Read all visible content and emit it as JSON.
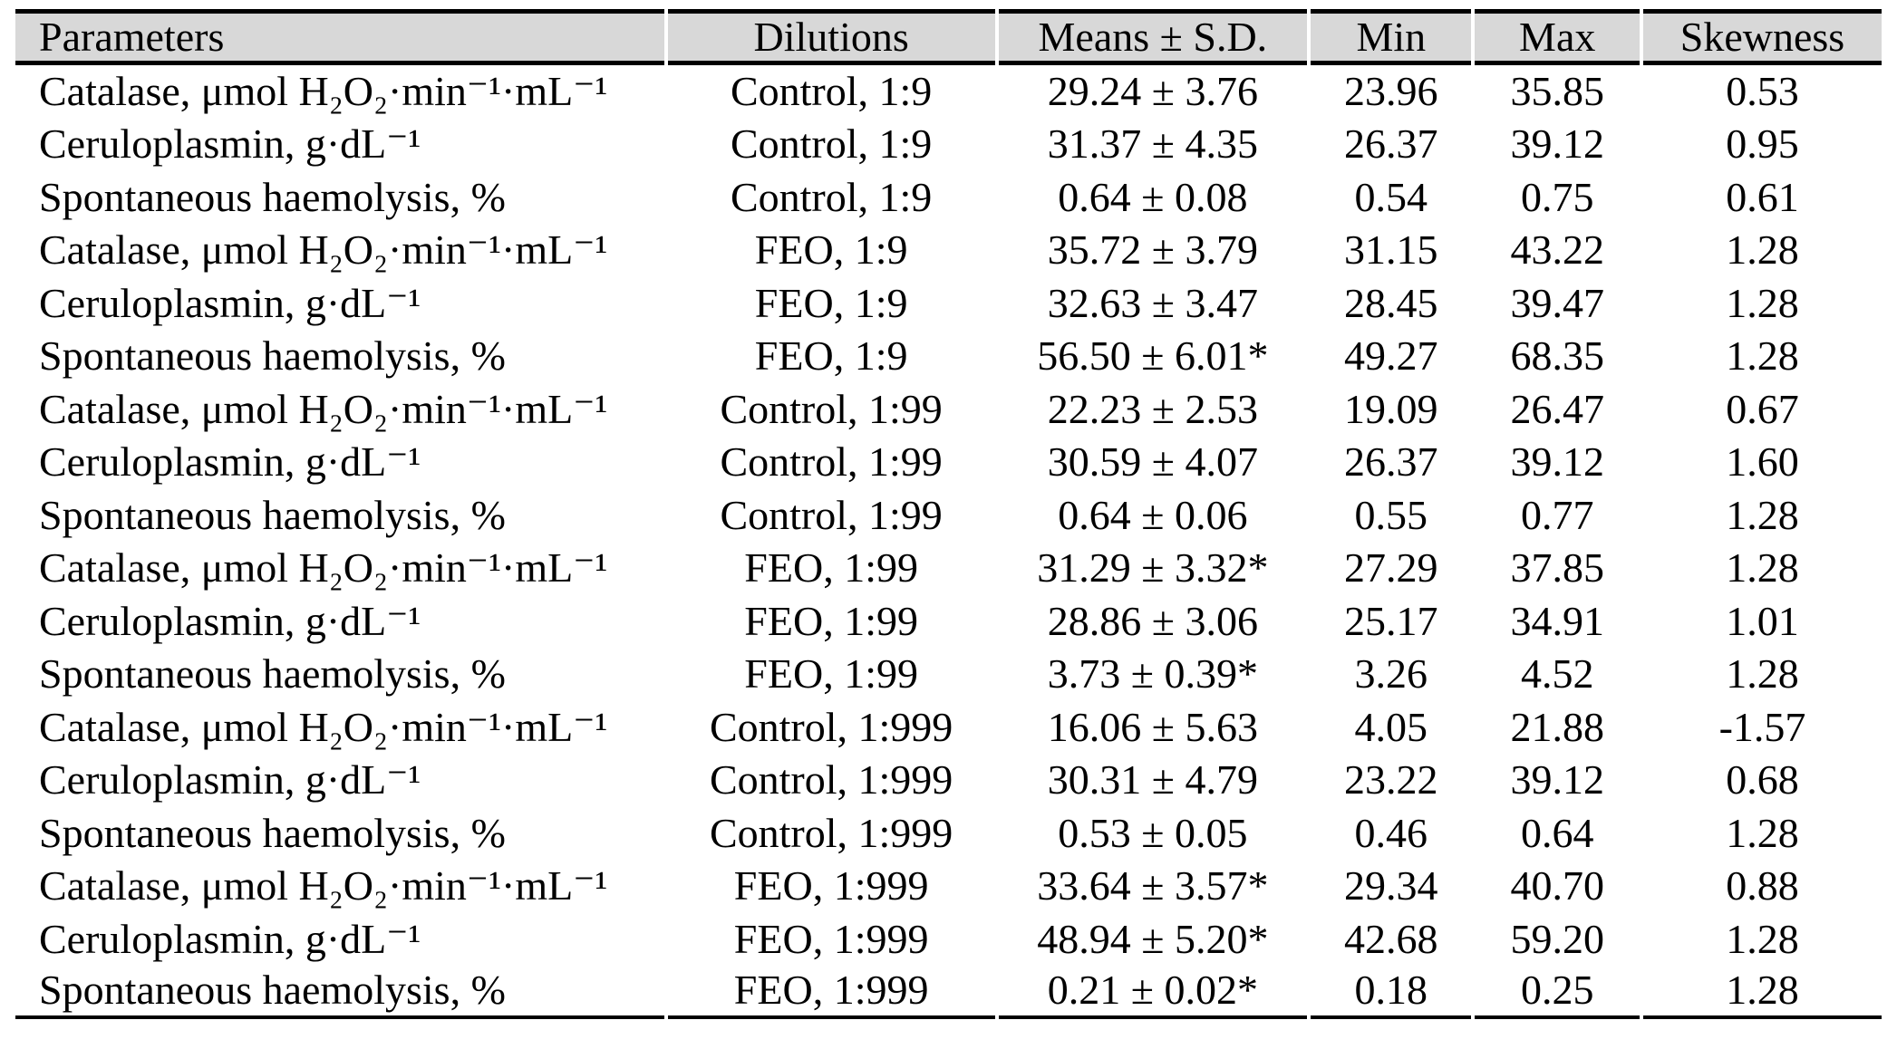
{
  "colors": {
    "header_bg": "#d8d8d8",
    "border": "#000000",
    "text": "#000000",
    "page_bg": "#ffffff"
  },
  "table": {
    "columns": [
      {
        "key": "parameter",
        "label": "Parameters",
        "align": "left"
      },
      {
        "key": "dilution",
        "label": "Dilutions",
        "align": "center"
      },
      {
        "key": "mean_sd",
        "label": "Means ± S.D.",
        "align": "center"
      },
      {
        "key": "min",
        "label": "Min",
        "align": "center"
      },
      {
        "key": "max",
        "label": "Max",
        "align": "center"
      },
      {
        "key": "skewness",
        "label": "Skewness",
        "align": "center"
      }
    ],
    "rows": [
      {
        "parameter": "Catalase, μmol H₂O₂·min⁻¹·mL⁻¹",
        "dilution": "Control, 1:9",
        "mean_sd": "29.24 ± 3.76",
        "min": "23.96",
        "max": "35.85",
        "skewness": "0.53"
      },
      {
        "parameter": "Ceruloplasmin, g·dL⁻¹",
        "dilution": "Control, 1:9",
        "mean_sd": "31.37 ± 4.35",
        "min": "26.37",
        "max": "39.12",
        "skewness": "0.95"
      },
      {
        "parameter": "Spontaneous haemolysis, %",
        "dilution": "Control, 1:9",
        "mean_sd": "0.64 ± 0.08",
        "min": "0.54",
        "max": "0.75",
        "skewness": "0.61"
      },
      {
        "parameter": "Catalase, μmol H₂O₂·min⁻¹·mL⁻¹",
        "dilution": "FEO, 1:9",
        "mean_sd": "35.72 ± 3.79",
        "min": "31.15",
        "max": "43.22",
        "skewness": "1.28"
      },
      {
        "parameter": "Ceruloplasmin, g·dL⁻¹",
        "dilution": "FEO, 1:9",
        "mean_sd": "32.63 ± 3.47",
        "min": "28.45",
        "max": "39.47",
        "skewness": "1.28"
      },
      {
        "parameter": "Spontaneous haemolysis, %",
        "dilution": "FEO, 1:9",
        "mean_sd": "56.50 ± 6.01*",
        "min": "49.27",
        "max": "68.35",
        "skewness": "1.28"
      },
      {
        "parameter": "Catalase, μmol H₂O₂·min⁻¹·mL⁻¹",
        "dilution": "Control, 1:99",
        "mean_sd": "22.23 ± 2.53",
        "min": "19.09",
        "max": "26.47",
        "skewness": "0.67"
      },
      {
        "parameter": "Ceruloplasmin, g·dL⁻¹",
        "dilution": "Control, 1:99",
        "mean_sd": "30.59 ± 4.07",
        "min": "26.37",
        "max": "39.12",
        "skewness": "1.60"
      },
      {
        "parameter": "Spontaneous haemolysis, %",
        "dilution": "Control, 1:99",
        "mean_sd": "0.64 ± 0.06",
        "min": "0.55",
        "max": "0.77",
        "skewness": "1.28"
      },
      {
        "parameter": "Catalase, μmol H₂O₂·min⁻¹·mL⁻¹",
        "dilution": "FEO, 1:99",
        "mean_sd": "31.29 ± 3.32*",
        "min": "27.29",
        "max": "37.85",
        "skewness": "1.28"
      },
      {
        "parameter": "Ceruloplasmin, g·dL⁻¹",
        "dilution": "FEO, 1:99",
        "mean_sd": "28.86 ± 3.06",
        "min": "25.17",
        "max": "34.91",
        "skewness": "1.01"
      },
      {
        "parameter": "Spontaneous haemolysis, %",
        "dilution": "FEO, 1:99",
        "mean_sd": "3.73 ± 0.39*",
        "min": "3.26",
        "max": "4.52",
        "skewness": "1.28"
      },
      {
        "parameter": "Catalase, μmol H₂O₂·min⁻¹·mL⁻¹",
        "dilution": "Control, 1:999",
        "mean_sd": "16.06 ± 5.63",
        "min": "4.05",
        "max": "21.88",
        "skewness": "-1.57"
      },
      {
        "parameter": "Ceruloplasmin, g·dL⁻¹",
        "dilution": "Control, 1:999",
        "mean_sd": "30.31 ± 4.79",
        "min": "23.22",
        "max": "39.12",
        "skewness": "0.68"
      },
      {
        "parameter": "Spontaneous haemolysis, %",
        "dilution": "Control, 1:999",
        "mean_sd": "0.53 ± 0.05",
        "min": "0.46",
        "max": "0.64",
        "skewness": "1.28"
      },
      {
        "parameter": "Catalase, μmol H₂O₂·min⁻¹·mL⁻¹",
        "dilution": "FEO, 1:999",
        "mean_sd": "33.64 ± 3.57*",
        "min": "29.34",
        "max": "40.70",
        "skewness": "0.88"
      },
      {
        "parameter": "Ceruloplasmin, g·dL⁻¹",
        "dilution": "FEO, 1:999",
        "mean_sd": "48.94 ± 5.20*",
        "min": "42.68",
        "max": "59.20",
        "skewness": "1.28"
      },
      {
        "parameter": "Spontaneous haemolysis, %",
        "dilution": "FEO, 1:999",
        "mean_sd": "0.21 ± 0.02*",
        "min": "0.18",
        "max": "0.25",
        "skewness": "1.28"
      }
    ]
  }
}
